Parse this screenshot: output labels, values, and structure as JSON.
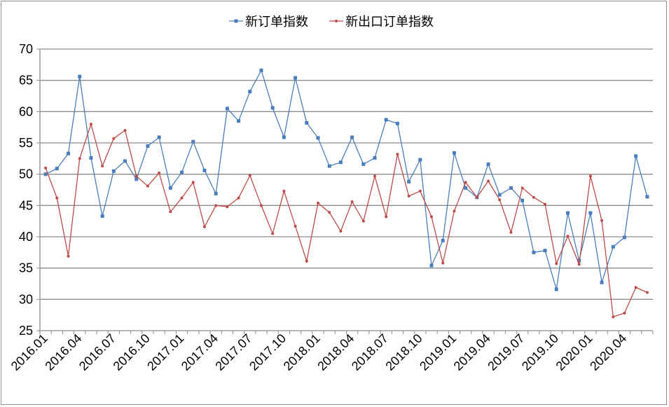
{
  "chart_data": {
    "type": "line",
    "title": "",
    "xlabel": "",
    "ylabel": "",
    "ylim": [
      25,
      70
    ],
    "yticks": [
      25,
      30,
      35,
      40,
      45,
      50,
      55,
      60,
      65,
      70
    ],
    "grid": true,
    "legend_position": "top",
    "x": [
      "2016.01",
      "2016.02",
      "2016.03",
      "2016.04",
      "2016.05",
      "2016.06",
      "2016.07",
      "2016.08",
      "2016.09",
      "2016.10",
      "2016.11",
      "2016.12",
      "2017.01",
      "2017.02",
      "2017.03",
      "2017.04",
      "2017.05",
      "2017.06",
      "2017.07",
      "2017.08",
      "2017.09",
      "2017.10",
      "2017.11",
      "2017.12",
      "2018.01",
      "2018.02",
      "2018.03",
      "2018.04",
      "2018.05",
      "2018.06",
      "2018.07",
      "2018.08",
      "2018.09",
      "2018.10",
      "2018.11",
      "2018.12",
      "2019.01",
      "2019.02",
      "2019.03",
      "2019.04",
      "2019.05",
      "2019.06",
      "2019.07",
      "2019.08",
      "2019.09",
      "2019.10",
      "2019.11",
      "2019.12",
      "2020.01",
      "2020.02",
      "2020.03",
      "2020.04",
      "2020.05",
      "2020.06"
    ],
    "xtick_labels": [
      "2016.01",
      "2016.04",
      "2016.07",
      "2016.10",
      "2017.01",
      "2017.04",
      "2017.07",
      "2017.10",
      "2018.01",
      "2018.04",
      "2018.07",
      "2018.10",
      "2019.01",
      "2019.04",
      "2019.07",
      "2019.10",
      "2020.01",
      "2020.04"
    ],
    "series": [
      {
        "name": "新订单指数",
        "color": "#4a7ebb",
        "marker": "square",
        "values": [
          50.0,
          50.9,
          53.3,
          65.6,
          52.6,
          43.3,
          50.5,
          52.1,
          49.2,
          54.5,
          55.9,
          47.8,
          50.3,
          55.2,
          50.6,
          46.9,
          60.5,
          58.5,
          63.2,
          66.6,
          60.6,
          55.9,
          65.4,
          58.2,
          55.8,
          51.3,
          51.9,
          55.9,
          51.6,
          52.6,
          58.7,
          58.1,
          48.8,
          52.3,
          35.4,
          39.4,
          53.4,
          47.8,
          46.3,
          51.6,
          46.7,
          47.8,
          45.8,
          37.5,
          37.8,
          31.6,
          43.8,
          36.2,
          43.8,
          32.7,
          38.4,
          39.9,
          52.9,
          46.4
        ]
      },
      {
        "name": "新出口订单指数",
        "color": "#be4b48",
        "marker": "star",
        "values": [
          51.0,
          46.2,
          36.9,
          52.5,
          58.0,
          51.3,
          55.7,
          57.0,
          49.7,
          48.1,
          50.2,
          44.0,
          46.2,
          48.7,
          41.6,
          45.0,
          44.8,
          46.2,
          49.8,
          45.0,
          40.5,
          47.3,
          41.7,
          36.1,
          45.4,
          43.9,
          40.9,
          45.6,
          42.5,
          49.7,
          43.2,
          53.2,
          46.5,
          47.3,
          43.2,
          35.8,
          44.1,
          48.7,
          46.3,
          48.9,
          45.9,
          40.7,
          47.8,
          46.3,
          45.2,
          35.7,
          40.1,
          35.6,
          49.7,
          42.6,
          27.2,
          27.8,
          31.9,
          31.1
        ]
      }
    ]
  }
}
